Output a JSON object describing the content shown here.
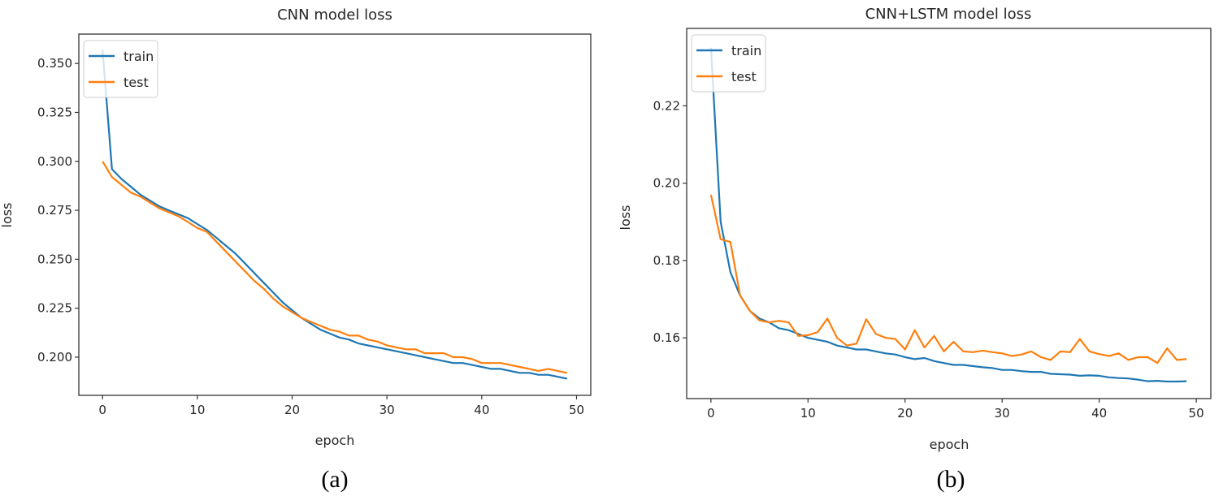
{
  "chart_data": [
    {
      "type": "line",
      "title": "CNN model loss",
      "xlabel": "epoch",
      "ylabel": "loss",
      "caption": "(a)",
      "xlim": [
        -2.5,
        51.5
      ],
      "ylim": [
        0.1805,
        0.365
      ],
      "xticks": [
        0,
        10,
        20,
        30,
        40,
        50
      ],
      "yticks": [
        0.2,
        0.225,
        0.25,
        0.275,
        0.3,
        0.325,
        0.35
      ],
      "ytick_labels": [
        "0.200",
        "0.225",
        "0.250",
        "0.275",
        "0.300",
        "0.325",
        "0.350"
      ],
      "grid": false,
      "legend_position": "upper-left",
      "series": [
        {
          "name": "train",
          "color": "#1f77b4",
          "values": [
            0.357,
            0.296,
            0.291,
            0.287,
            0.283,
            0.28,
            0.277,
            0.275,
            0.273,
            0.271,
            0.268,
            0.265,
            0.261,
            0.257,
            0.253,
            0.248,
            0.243,
            0.238,
            0.233,
            0.228,
            0.224,
            0.22,
            0.217,
            0.214,
            0.212,
            0.21,
            0.209,
            0.207,
            0.206,
            0.205,
            0.204,
            0.203,
            0.202,
            0.201,
            0.2,
            0.199,
            0.198,
            0.197,
            0.197,
            0.196,
            0.195,
            0.194,
            0.194,
            0.193,
            0.192,
            0.192,
            0.191,
            0.191,
            0.19,
            0.189
          ]
        },
        {
          "name": "test",
          "color": "#ff7f0e",
          "values": [
            0.3,
            0.292,
            0.288,
            0.284,
            0.282,
            0.279,
            0.276,
            0.274,
            0.272,
            0.269,
            0.266,
            0.264,
            0.259,
            0.254,
            0.249,
            0.244,
            0.239,
            0.235,
            0.23,
            0.226,
            0.223,
            0.22,
            0.218,
            0.216,
            0.214,
            0.213,
            0.211,
            0.211,
            0.209,
            0.208,
            0.206,
            0.205,
            0.204,
            0.204,
            0.202,
            0.202,
            0.202,
            0.2,
            0.2,
            0.199,
            0.197,
            0.197,
            0.197,
            0.196,
            0.195,
            0.194,
            0.193,
            0.194,
            0.193,
            0.192
          ]
        }
      ]
    },
    {
      "type": "line",
      "title": "CNN+LSTM model loss",
      "xlabel": "epoch",
      "ylabel": "loss",
      "caption": "(b)",
      "xlim": [
        -2.5,
        51.5
      ],
      "ylim": [
        0.1443,
        0.24
      ],
      "xticks": [
        0,
        10,
        20,
        30,
        40,
        50
      ],
      "yticks": [
        0.16,
        0.18,
        0.2,
        0.22
      ],
      "ytick_labels": [
        "0.16",
        "0.18",
        "0.20",
        "0.22"
      ],
      "grid": false,
      "legend_position": "upper-left",
      "series": [
        {
          "name": "train",
          "color": "#1f77b4",
          "values": [
            0.235,
            0.19,
            0.177,
            0.171,
            0.167,
            0.165,
            0.164,
            0.1625,
            0.162,
            0.161,
            0.16,
            0.1595,
            0.159,
            0.158,
            0.1575,
            0.157,
            0.157,
            0.1565,
            0.156,
            0.1557,
            0.155,
            0.1545,
            0.1548,
            0.154,
            0.1535,
            0.153,
            0.153,
            0.1527,
            0.1524,
            0.1522,
            0.1517,
            0.1517,
            0.1514,
            0.1512,
            0.1512,
            0.1507,
            0.1506,
            0.1505,
            0.1502,
            0.1503,
            0.1502,
            0.1498,
            0.1496,
            0.1495,
            0.1492,
            0.1488,
            0.1489,
            0.1487,
            0.1487,
            0.1488
          ]
        },
        {
          "name": "test",
          "color": "#ff7f0e",
          "values": [
            0.197,
            0.1855,
            0.1848,
            0.171,
            0.167,
            0.1645,
            0.164,
            0.1644,
            0.164,
            0.1605,
            0.1607,
            0.1615,
            0.165,
            0.16,
            0.158,
            0.1585,
            0.1648,
            0.161,
            0.16,
            0.1597,
            0.157,
            0.162,
            0.1575,
            0.1605,
            0.1565,
            0.159,
            0.1565,
            0.1563,
            0.1567,
            0.1563,
            0.156,
            0.1553,
            0.1557,
            0.1565,
            0.155,
            0.1543,
            0.1565,
            0.1563,
            0.1597,
            0.1565,
            0.1558,
            0.1553,
            0.156,
            0.1543,
            0.155,
            0.155,
            0.1535,
            0.1573,
            0.1543,
            0.1545
          ]
        }
      ]
    }
  ]
}
